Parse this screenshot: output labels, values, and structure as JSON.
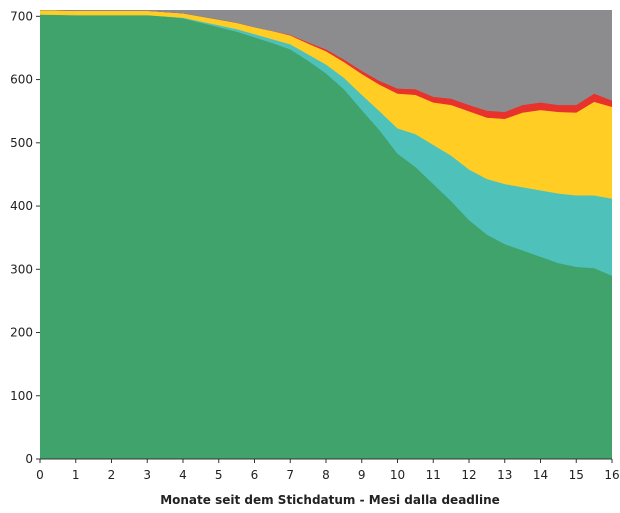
{
  "chart_data": {
    "type": "area",
    "stacked": true,
    "title": "",
    "xlabel": "Monate seit dem Stichdatum - Mesi dalla deadline",
    "ylabel": "",
    "xlim": [
      0,
      16
    ],
    "ylim": [
      0,
      710
    ],
    "x_ticks": [
      0,
      1,
      2,
      3,
      4,
      5,
      6,
      7,
      8,
      9,
      10,
      11,
      12,
      13,
      14,
      15,
      16
    ],
    "y_ticks": [
      0,
      100,
      200,
      300,
      400,
      500,
      600,
      700
    ],
    "grid": false,
    "legend": "none",
    "x": [
      0,
      1,
      2,
      3,
      3.5,
      4,
      4.5,
      5,
      5.5,
      6,
      6.5,
      7,
      7.5,
      8,
      8.5,
      9,
      9.5,
      10,
      10.5,
      11,
      11.5,
      12,
      12.5,
      13,
      13.5,
      14,
      14.5,
      15,
      15.5,
      16
    ],
    "series": [
      {
        "name": "",
        "color": "#3fa36b",
        "values": [
          703,
          702,
          702,
          702,
          700,
          697,
          690,
          683,
          676,
          667,
          658,
          648,
          630,
          610,
          585,
          552,
          520,
          483,
          462,
          435,
          408,
          378,
          355,
          340,
          330,
          320,
          310,
          304,
          302,
          290
        ]
      },
      {
        "name": "",
        "color": "#4ec1bb",
        "values": [
          0,
          0,
          0,
          0,
          0,
          1,
          2,
          3,
          4,
          5,
          6,
          8,
          10,
          14,
          18,
          24,
          30,
          40,
          52,
          62,
          72,
          80,
          88,
          95,
          100,
          105,
          110,
          113,
          115,
          122
        ]
      },
      {
        "name": "",
        "color": "#ffcd24",
        "values": [
          7,
          7,
          7,
          7,
          7,
          7,
          8,
          9,
          10,
          11,
          13,
          14,
          17,
          21,
          25,
          33,
          42,
          55,
          62,
          67,
          80,
          92,
          97,
          103,
          118,
          127,
          129,
          131,
          148,
          145
        ]
      },
      {
        "name": "",
        "color": "#e8322c",
        "values": [
          0,
          0,
          0,
          0,
          0,
          0,
          0,
          0,
          0,
          0,
          0,
          1,
          2,
          3,
          4,
          5,
          6,
          8,
          9,
          9,
          10,
          10,
          11,
          11,
          12,
          12,
          11,
          12,
          13,
          10
        ]
      },
      {
        "name": "",
        "color": "#8c8c8e",
        "values": [
          0,
          1,
          1,
          1,
          3,
          5,
          10,
          15,
          20,
          27,
          33,
          39,
          51,
          62,
          78,
          96,
          112,
          124,
          125,
          137,
          140,
          150,
          159,
          161,
          150,
          146,
          150,
          150,
          132,
          143
        ]
      }
    ]
  }
}
